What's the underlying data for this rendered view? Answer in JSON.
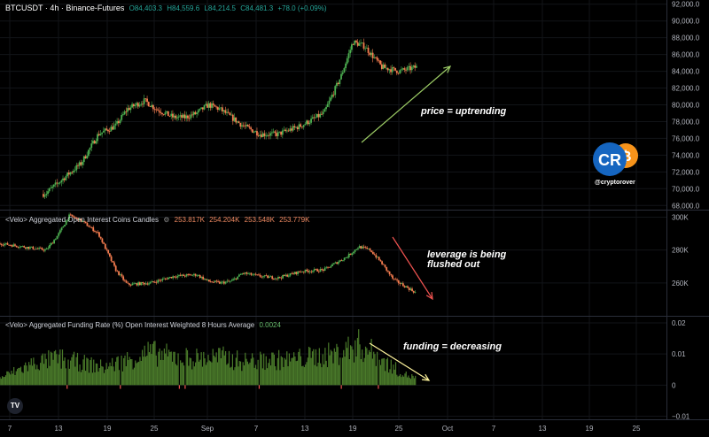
{
  "header": {
    "symbol": "BTCUSDT · 4h · Binance-Futures",
    "o": "O84,403.3",
    "h": "H84,559.6",
    "l": "L84,214.5",
    "c": "C84,481.3",
    "chg": "+78.0 (+0.09%)"
  },
  "pane2_header": {
    "name": "<Velo> Aggregated Open Interest Coins Candles",
    "v1": "253.817K",
    "v2": "254.204K",
    "v3": "253.548K",
    "v4": "253.779K"
  },
  "pane3_header": {
    "name": "<Velo> Aggregated Funding Rate (%) Open Interest Weighted 8 Hours Average",
    "value": "0.0024"
  },
  "annotations": {
    "price": "price = uptrending",
    "leverage_1": "leverage is being",
    "leverage_2": "flushed out",
    "funding": "funding = decreasing"
  },
  "brand": {
    "handle": "@cryptorover",
    "logo_text": "CR",
    "coin_glyph": "₿"
  },
  "tv_logo": "TV",
  "colors": {
    "up": "#26a69a",
    "down": "#ef5350",
    "candle_up": "#4caf50",
    "candle_down": "#f57c4f",
    "arrow_green": "#9ccc65",
    "arrow_red": "#ef5350",
    "arrow_yellow": "#fff59d",
    "funding_bar": "#4a7a2a",
    "background": "#000000",
    "brand_blue": "#1565c0",
    "brand_orange": "#f7931a"
  },
  "chart_data": [
    {
      "type": "line",
      "title": "BTCUSDT · 4h · Binance-Futures",
      "x_tick_labels": [
        "7",
        "13",
        "19",
        "25",
        "Sep",
        "7",
        "13",
        "19",
        "25",
        "Oct",
        "7",
        "13",
        "19",
        "25"
      ],
      "y_tick_labels": [
        "92,000.0",
        "90,000.0",
        "88,000.0",
        "86,000.0",
        "84,000.0",
        "82,000.0",
        "80,000.0",
        "78,000.0",
        "76,000.0",
        "74,000.0",
        "72,000.0",
        "70,000.0",
        "68,000.0"
      ],
      "ylim": [
        67500,
        92500
      ],
      "x": [
        0,
        8,
        14,
        17,
        20,
        22,
        25,
        27,
        30,
        32,
        34,
        36,
        38,
        40,
        42,
        45,
        48,
        52,
        56,
        59,
        61,
        63,
        66,
        69,
        72
      ],
      "values": [
        67500,
        69500,
        73000,
        76500,
        77500,
        79500,
        80500,
        79500,
        78500,
        78500,
        79000,
        80000,
        79500,
        78500,
        77500,
        76500,
        76500,
        77500,
        79000,
        83500,
        87500,
        87000,
        84500,
        84000,
        84500
      ]
    },
    {
      "type": "line",
      "title": "<Velo> Aggregated Open Interest Coins Candles",
      "y_tick_labels": [
        "300K",
        "280K",
        "260K"
      ],
      "ylim": [
        240000,
        304000
      ],
      "x": [
        0,
        4,
        8,
        10,
        12,
        14,
        17,
        20,
        22,
        26,
        30,
        34,
        36,
        38,
        40,
        42,
        45,
        48,
        52,
        56,
        58,
        60,
        62,
        64,
        66,
        68,
        70,
        72
      ],
      "values": [
        284000,
        282000,
        280000,
        289000,
        301000,
        298000,
        290000,
        268000,
        259000,
        260000,
        264000,
        265000,
        261000,
        260000,
        261000,
        266000,
        264000,
        263000,
        267000,
        268000,
        272000,
        276000,
        282000,
        280000,
        272000,
        262000,
        258000,
        253800
      ]
    },
    {
      "type": "bar",
      "title": "<Velo> Aggregated Funding Rate (%) Open Interest Weighted 8 Hours Average",
      "y_tick_labels": [
        "0.02",
        "0.01",
        "0",
        "−0.01"
      ],
      "ylim": [
        -0.011,
        0.022
      ],
      "x": [
        0,
        6,
        10,
        14,
        18,
        22,
        26,
        30,
        34,
        38,
        42,
        46,
        50,
        54,
        58,
        62,
        64,
        66,
        68,
        70,
        72
      ],
      "values": [
        0.0025,
        0.0075,
        0.009,
        0.0075,
        0.006,
        0.0085,
        0.011,
        0.0095,
        0.009,
        0.0095,
        0.008,
        0.0085,
        0.0085,
        0.0095,
        0.0105,
        0.0135,
        0.0115,
        0.0085,
        0.006,
        0.0035,
        0.0024
      ]
    }
  ]
}
